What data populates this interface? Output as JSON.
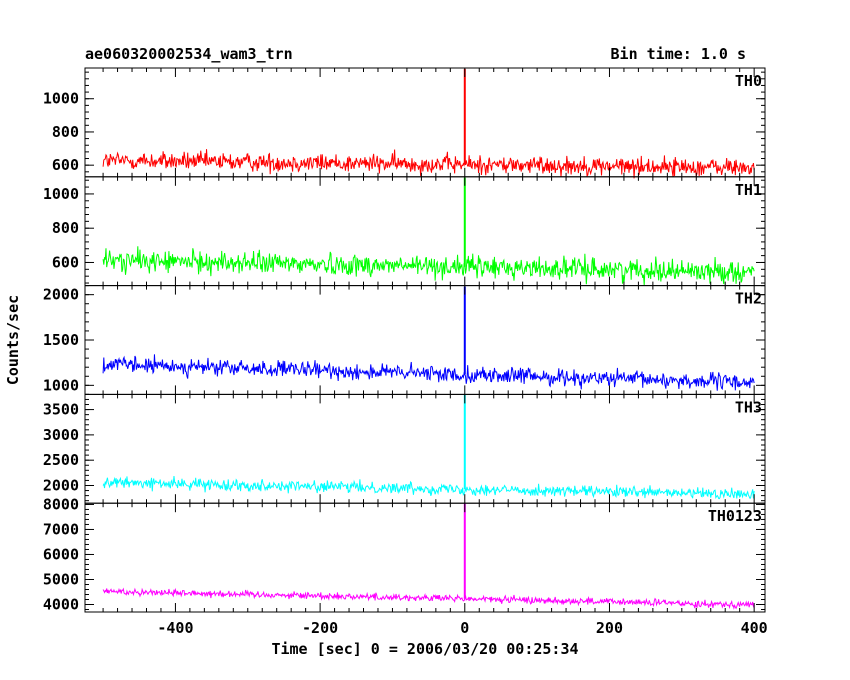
{
  "header": {
    "left_title": "ae060320002534_wam3_trn",
    "right_title": "Bin time: 1.0 s"
  },
  "chart_data": {
    "type": "line",
    "xlabel": "Time [sec] 0 = 2006/03/20 00:25:34",
    "ylabel": "Counts/sec",
    "xlim": [
      -525,
      415
    ],
    "x_ticks": [
      -400,
      -200,
      0,
      200,
      400
    ],
    "x_range": [
      -500,
      400
    ],
    "bin_time_s": 1.0,
    "panels": [
      {
        "name": "TH0",
        "color": "#ff0000",
        "ylim": [
          530,
          1185
        ],
        "y_ticks": [
          600,
          800,
          1000
        ],
        "baseline_start": 628,
        "baseline_end": 585,
        "noise": 28,
        "spike_peak": 1180
      },
      {
        "name": "TH1",
        "color": "#00ff00",
        "ylim": [
          465,
          1100
        ],
        "y_ticks": [
          600,
          800,
          1000
        ],
        "baseline_start": 612,
        "baseline_end": 545,
        "noise": 32,
        "spike_peak": 1095
      },
      {
        "name": "TH2",
        "color": "#0000ff",
        "ylim": [
          900,
          2100
        ],
        "y_ticks": [
          1000,
          1500,
          2000
        ],
        "baseline_start": 1230,
        "baseline_end": 1030,
        "noise": 45,
        "spike_peak": 2090
      },
      {
        "name": "TH3",
        "color": "#00ffff",
        "ylim": [
          1650,
          3800
        ],
        "y_ticks": [
          2000,
          2500,
          3000,
          3500
        ],
        "baseline_start": 2060,
        "baseline_end": 1820,
        "noise": 55,
        "spike_peak": 3790
      },
      {
        "name": "TH0123",
        "color": "#ff00ff",
        "ylim": [
          3700,
          8050
        ],
        "y_ticks": [
          4000,
          5000,
          6000,
          7000,
          8000
        ],
        "baseline_start": 4530,
        "baseline_end": 3990,
        "noise": 70,
        "spike_peak": 8040
      }
    ]
  }
}
